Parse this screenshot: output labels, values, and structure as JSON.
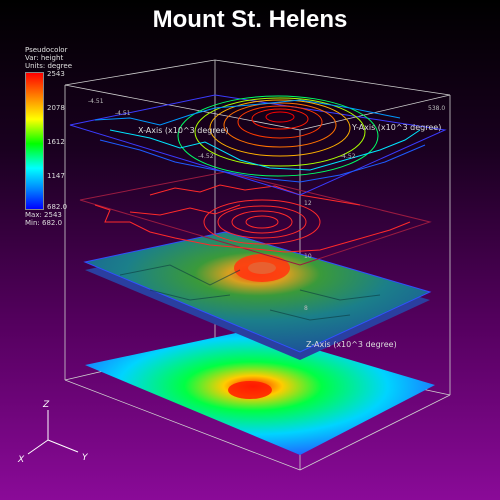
{
  "title": "Mount St. Helens",
  "legend": {
    "plot_type": "Pseudocolor",
    "variable": "Var: height",
    "units": "Units: degree",
    "ticks": [
      "2543",
      "2078",
      "1612",
      "1147",
      "682.0"
    ],
    "max": "Max: 2543",
    "min": "Min: 682.0",
    "colormap": [
      "#ff0000",
      "#ff8800",
      "#ffff00",
      "#00ff00",
      "#00ffff",
      "#0088ff",
      "#0000ff"
    ]
  },
  "axes": {
    "x_label": "X-Axis (x10^3 degree)",
    "y_label": "Y-Axis (x10^3 degree)",
    "z_label": "Z-Axis (x10^3 degree)",
    "x_ticks": [
      "-4.51",
      "-4.51",
      "-4.52"
    ],
    "y_ticks": [
      "538.0",
      "-4.52"
    ],
    "z_ticks": [
      "12",
      "10",
      "8"
    ]
  },
  "triad": {
    "x": "X",
    "y": "Y",
    "z": "Z"
  },
  "colors": {
    "contour_red": "#ff2a2a",
    "plane_edge": "#3b3bff",
    "bbox": "#d0d0d0"
  }
}
